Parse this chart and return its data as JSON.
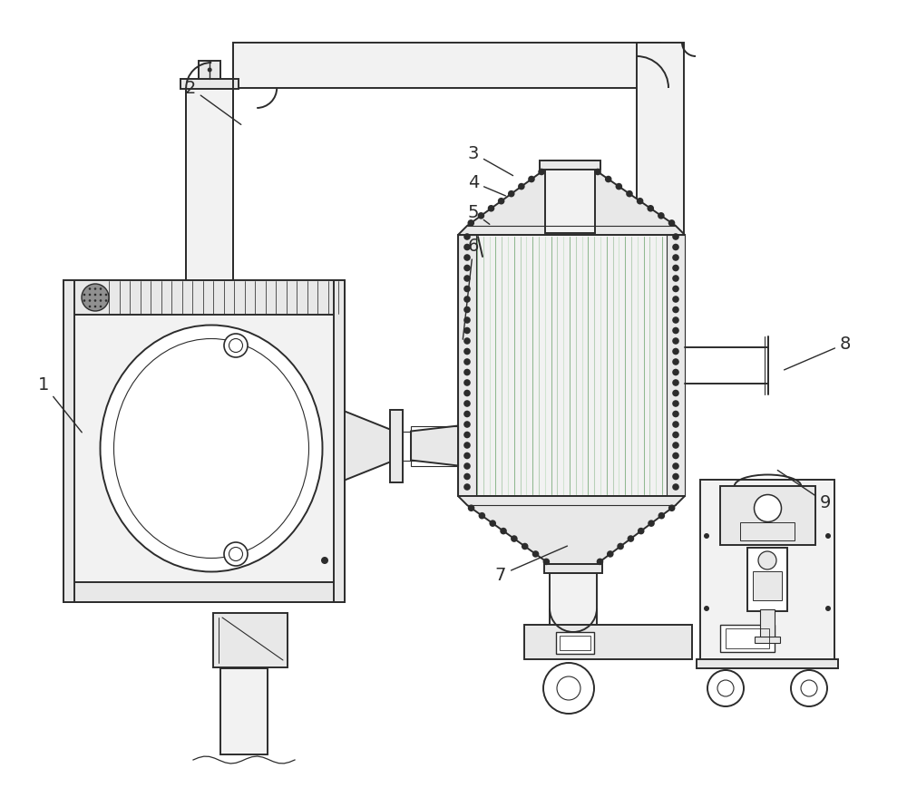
{
  "bg_color": "#ffffff",
  "lc": "#2c2c2c",
  "fill_light": "#e8e8e8",
  "fill_lighter": "#f2f2f2",
  "med_gray": "#909090",
  "green1": "#90b890",
  "green2": "#b8d0b8",
  "green3": "#d0e4d0"
}
